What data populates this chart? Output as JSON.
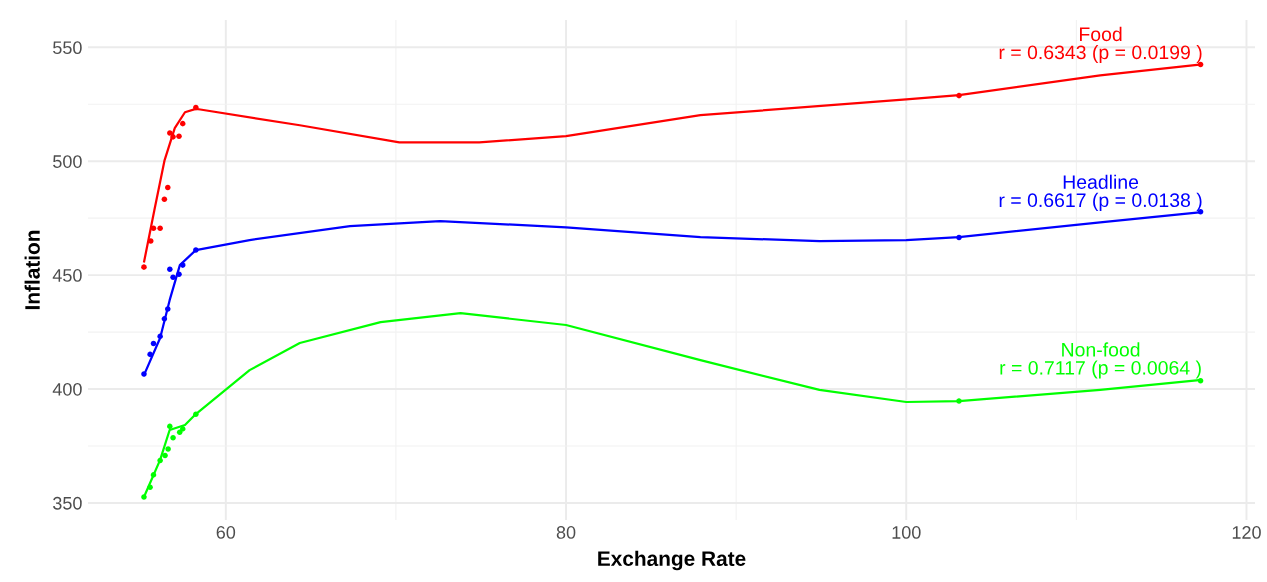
{
  "chart_data": {
    "type": "scatter",
    "xlabel": "Exchange Rate",
    "ylabel": "Inflation",
    "xlim": [
      51.9,
      120.5
    ],
    "ylim": [
      342.5,
      562
    ],
    "xticks": [
      60,
      80,
      100,
      120
    ],
    "yticks": [
      350,
      400,
      450,
      500,
      550
    ],
    "grid": true,
    "series": [
      {
        "marker": "circle",
        "color": "#ff0000",
        "x": [
          55.19,
          55.59,
          55.75,
          56.14,
          56.39,
          56.59,
          56.71,
          56.9,
          57.25,
          57.47,
          58.24,
          103.1,
          117.3
        ],
        "values": [
          453.5,
          465.0,
          470.6,
          470.6,
          483.3,
          488.5,
          512.4,
          510.7,
          511.0,
          516.5,
          523.6,
          528.8,
          542.5
        ]
      },
      {
        "marker": "circle",
        "color": "#0000ff",
        "x": [
          55.19,
          55.55,
          55.75,
          56.14,
          56.39,
          56.59,
          56.71,
          56.9,
          57.25,
          57.47,
          58.24,
          103.1,
          117.3
        ],
        "values": [
          406.6,
          415.2,
          420.0,
          423.1,
          430.8,
          435.1,
          452.6,
          449.1,
          450.4,
          454.4,
          461.0,
          466.5,
          477.8
        ]
      },
      {
        "marker": "circle",
        "color": "#00ff00",
        "x": [
          55.19,
          55.55,
          55.75,
          56.14,
          56.43,
          56.61,
          56.71,
          56.9,
          57.29,
          57.47,
          58.24,
          103.1,
          117.3
        ],
        "values": [
          352.6,
          356.9,
          362.3,
          368.6,
          370.8,
          373.7,
          383.6,
          378.6,
          381.0,
          382.5,
          388.9,
          394.7,
          403.6
        ]
      },
      {
        "type": "line",
        "color": "#ff0000",
        "x": [
          55.2,
          55.8,
          56.4,
          57.0,
          57.6,
          58.24,
          58.5,
          64.35,
          70.2,
          74.9,
          80,
          87.9,
          100,
          103.1,
          111.4,
          117.3
        ],
        "values": [
          456,
          478.5,
          500.4,
          514.5,
          521.5,
          523,
          522.7,
          515.8,
          508.3,
          508.3,
          511,
          520.2,
          527.2,
          529,
          537.7,
          542.5
        ]
      },
      {
        "type": "line",
        "color": "#0000ff",
        "x": [
          55.19,
          56.14,
          56.7,
          57.3,
          58.24,
          61.4,
          67.3,
          72.6,
          80,
          87.9,
          94.9,
          100,
          103.1,
          111.4,
          117.3
        ],
        "values": [
          406.1,
          422.4,
          439,
          454.4,
          461,
          465.4,
          471.5,
          473.7,
          471,
          466.7,
          464.9,
          465.4,
          466.7,
          473.2,
          477.6
        ]
      },
      {
        "type": "line",
        "color": "#00ff00",
        "x": [
          55.19,
          56.14,
          56.7,
          57.6,
          58.24,
          61.4,
          64.35,
          69.1,
          73.8,
          80,
          87.9,
          94.9,
          100,
          103.1,
          111.4,
          117.3
        ],
        "values": [
          352.6,
          368.9,
          382,
          384.2,
          389,
          408.3,
          420.2,
          429.4,
          433.3,
          428.1,
          412.7,
          399.6,
          394.3,
          394.7,
          399.6,
          404
        ]
      }
    ],
    "annotations": [
      "Food\nr = 0.6343 (p = 0.0199 )",
      "Headline\nr = 0.6617 (p = 0.0138 )",
      "Non-food\nr = 0.7117 (p = 0.0064 )"
    ]
  }
}
